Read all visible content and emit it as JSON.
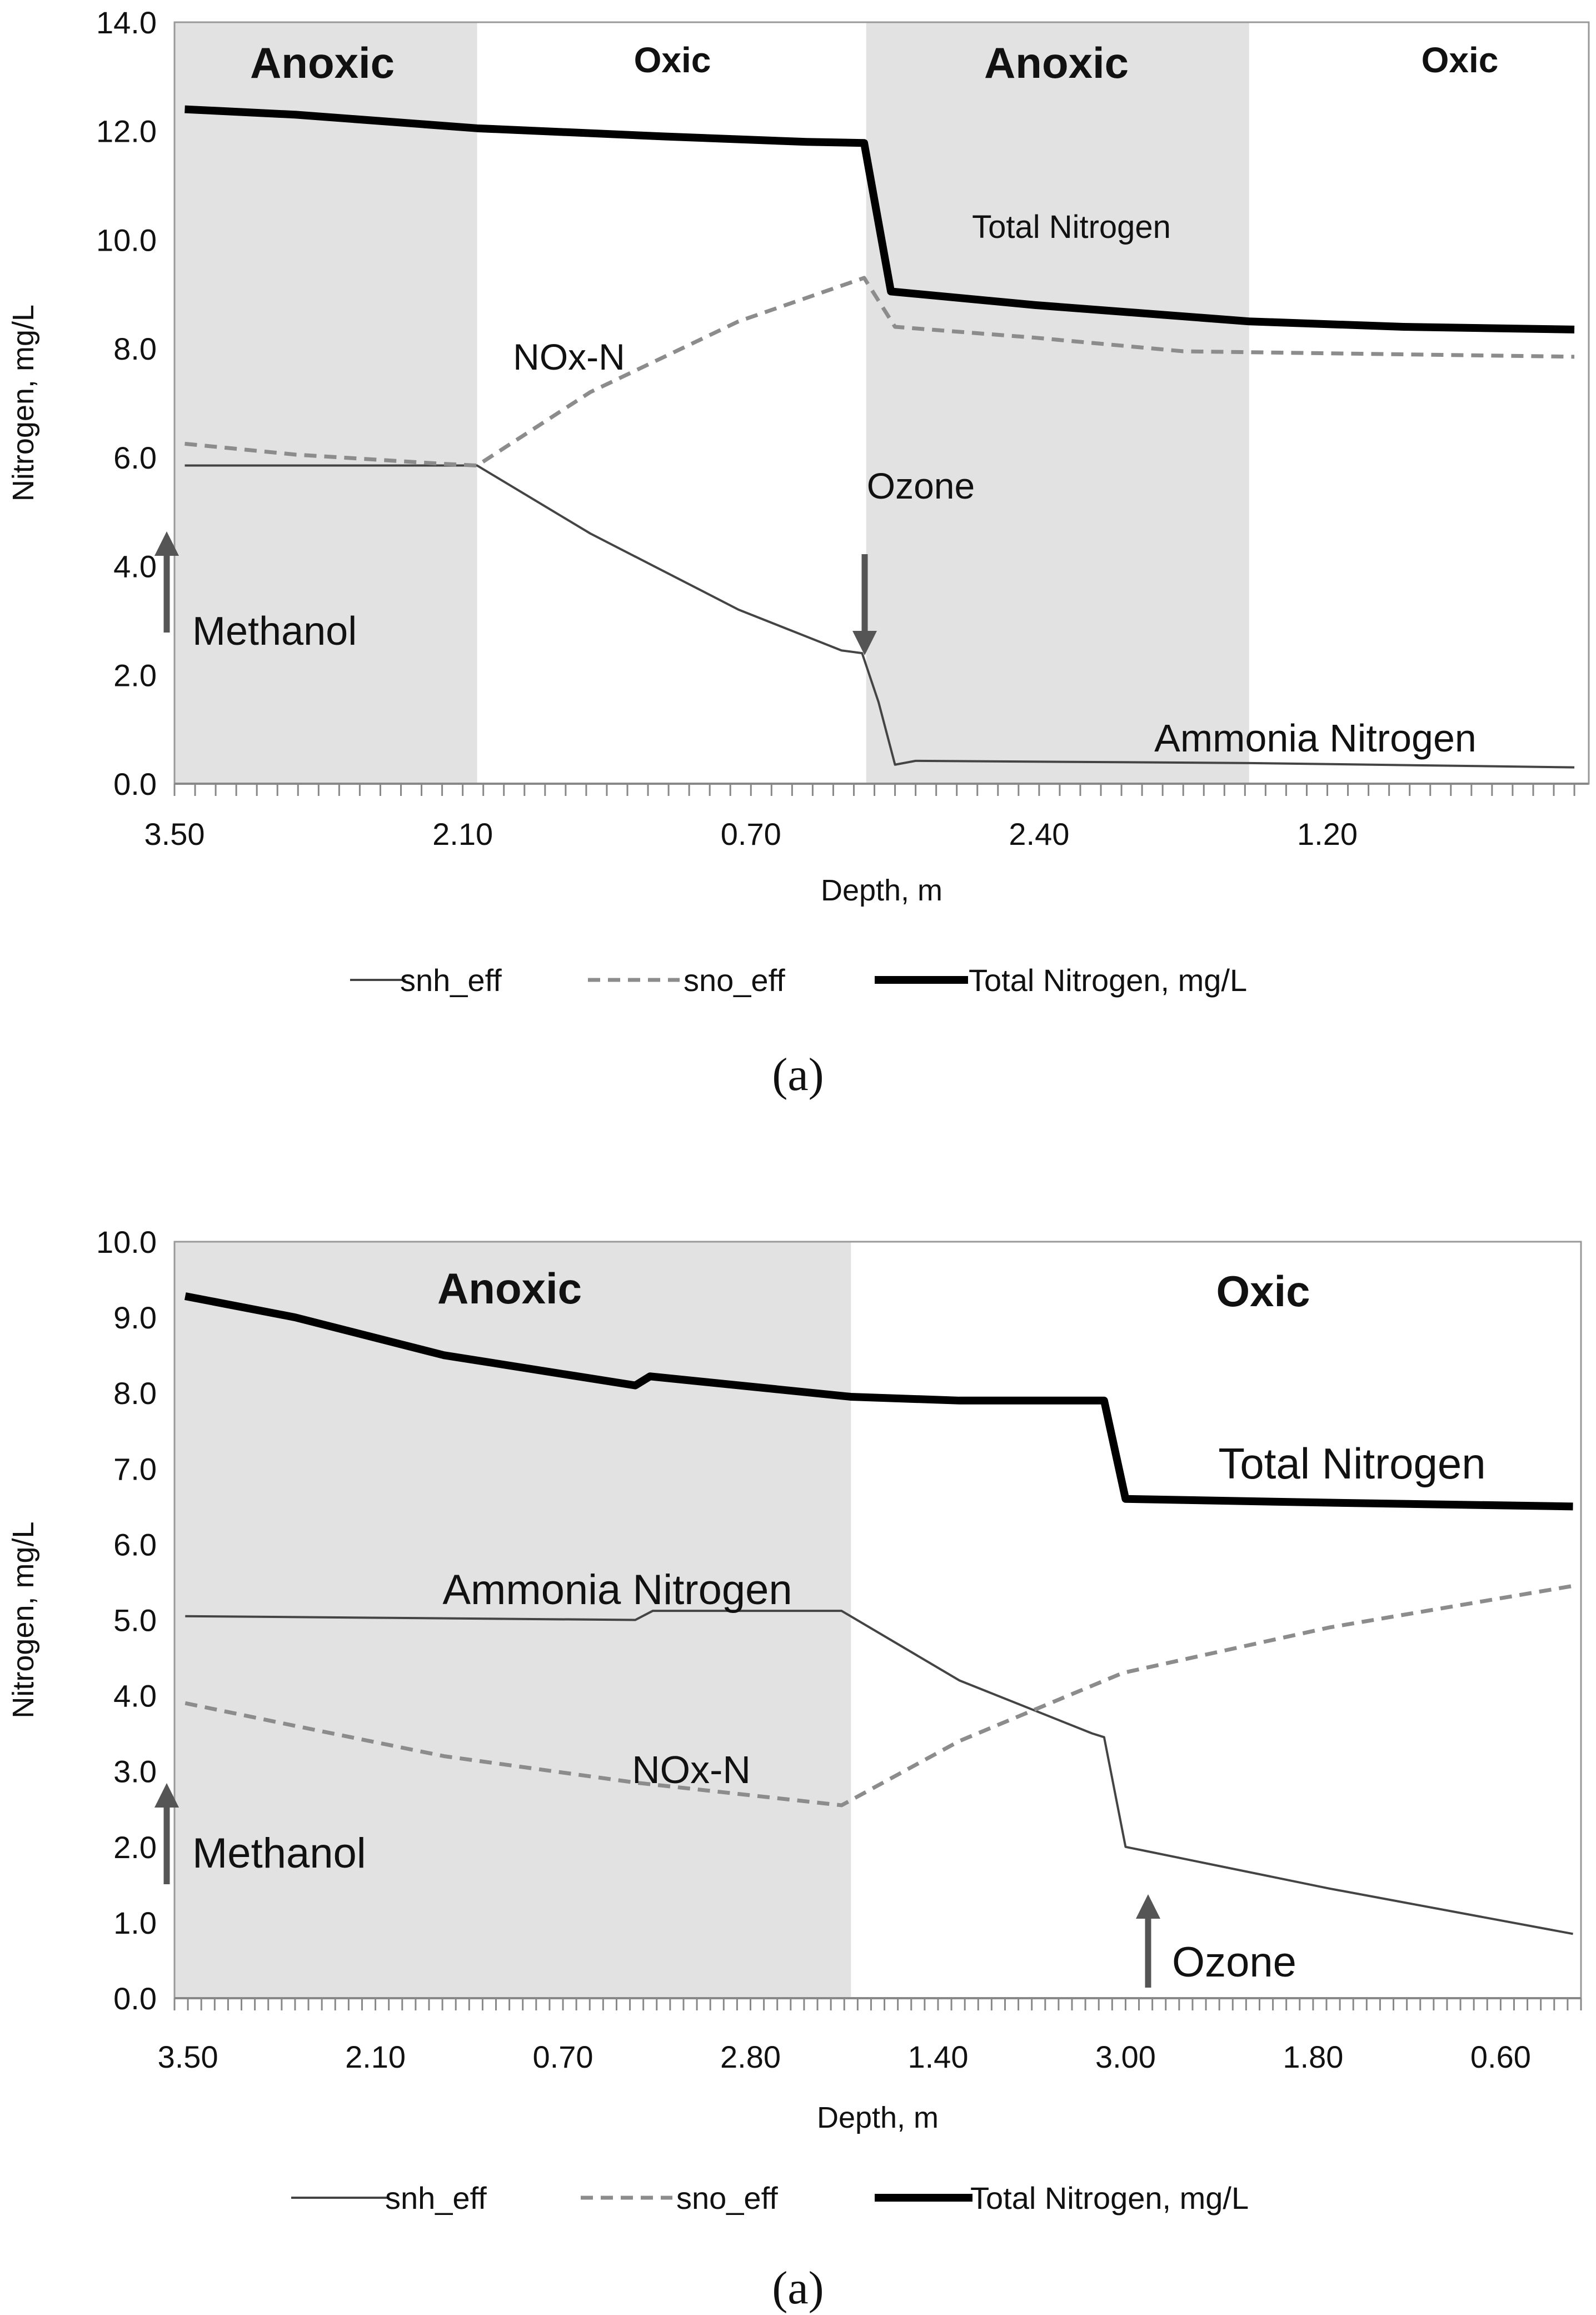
{
  "colors": {
    "region_fill": "#e2e2e2",
    "total_nitrogen": "#000000",
    "snh": "#444444",
    "sno": "#8c8c8c",
    "arrow": "#555555"
  },
  "chart_data": [
    {
      "type": "line",
      "caption": "(a)",
      "xlabel": "Depth, m",
      "ylabel": "Nitrogen, mg/L",
      "ylim": [
        0,
        14
      ],
      "yticks": [
        "0.0",
        "2.0",
        "4.0",
        "6.0",
        "8.0",
        "10.0",
        "12.0",
        "14.0"
      ],
      "ytick_values": [
        0,
        2,
        4,
        6,
        8,
        10,
        12,
        14
      ],
      "xlim": [
        0,
        68.7
      ],
      "xtick_positions": [
        0,
        14,
        28,
        42,
        56
      ],
      "xtick_labels": [
        "3.50",
        "2.10",
        "0.70",
        "2.40",
        "1.20"
      ],
      "regions": [
        {
          "label": "Anoxic",
          "from": 0,
          "to": 14.7,
          "shaded": true
        },
        {
          "label": "Oxic",
          "from": 14.7,
          "to": 33.6,
          "shaded": false
        },
        {
          "label": "Anoxic",
          "from": 33.6,
          "to": 52.2,
          "shaded": true
        },
        {
          "label": "Oxic",
          "from": 52.2,
          "to": 68.7,
          "shaded": false
        }
      ],
      "series": [
        {
          "name": "snh_eff",
          "x": [
            0.5,
            14.7,
            20.2,
            27.4,
            32.4,
            33.4,
            34.2,
            35.0,
            36.0,
            52.2,
            68.0
          ],
          "y": [
            5.85,
            5.85,
            4.6,
            3.2,
            2.45,
            2.4,
            1.5,
            0.35,
            0.42,
            0.38,
            0.3
          ]
        },
        {
          "name": "sno_eff",
          "x": [
            0.5,
            5.9,
            13.1,
            14.7,
            20.2,
            27.4,
            33.5,
            35.0,
            41.8,
            49.0,
            68.0
          ],
          "y": [
            6.25,
            6.05,
            5.88,
            5.85,
            7.2,
            8.5,
            9.3,
            8.4,
            8.2,
            7.95,
            7.85
          ]
        },
        {
          "name": "Total Nitrogen, mg/L",
          "x": [
            0.5,
            5.9,
            14.7,
            23.8,
            30.7,
            33.5,
            34.8,
            41.8,
            52.2,
            59.7,
            68.0
          ],
          "y": [
            12.4,
            12.3,
            12.05,
            11.9,
            11.8,
            11.78,
            9.05,
            8.8,
            8.5,
            8.4,
            8.35
          ]
        }
      ],
      "annotations": [
        "Total Nitrogen",
        "NOx-N",
        "Ozone",
        "Methanol",
        "Ammonia Nitrogen"
      ],
      "legend_placement": "bottom"
    },
    {
      "type": "line",
      "caption": "(a)",
      "xlabel": "Depth, m",
      "ylabel": "Nitrogen, mg/L",
      "ylim": [
        0,
        10
      ],
      "yticks": [
        "0.0",
        "1.0",
        "2.0",
        "3.0",
        "4.0",
        "5.0",
        "6.0",
        "7.0",
        "8.0",
        "9.0",
        "10.0"
      ],
      "ytick_values": [
        0,
        1,
        2,
        3,
        4,
        5,
        6,
        7,
        8,
        9,
        10
      ],
      "xlim": [
        -1,
        104
      ],
      "xtick_positions": [
        0,
        14,
        28,
        42,
        56,
        70,
        84,
        98
      ],
      "xtick_labels": [
        "3.50",
        "2.10",
        "0.70",
        "2.80",
        "1.40",
        "3.00",
        "1.80",
        "0.60"
      ],
      "regions": [
        {
          "label": "Anoxic",
          "from": -1,
          "to": 49.5,
          "shaded": true
        },
        {
          "label": "Oxic",
          "from": 49.5,
          "to": 104,
          "shaded": false
        }
      ],
      "series": [
        {
          "name": "snh_eff",
          "x": [
            -0.2,
            33.4,
            34.7,
            48.8,
            57.6,
            67.5,
            68.4,
            70.0,
            71.4,
            85.2,
            103.4
          ],
          "y": [
            5.05,
            5.0,
            5.12,
            5.12,
            4.2,
            3.5,
            3.45,
            2.0,
            1.95,
            1.45,
            0.85
          ]
        },
        {
          "name": "sno_eff",
          "x": [
            -0.2,
            8.0,
            19.1,
            33.4,
            48.8,
            57.6,
            69.8,
            85.2,
            103.4
          ],
          "y": [
            3.9,
            3.6,
            3.2,
            2.85,
            2.55,
            3.4,
            4.3,
            4.9,
            5.45
          ]
        },
        {
          "name": "Total Nitrogen, mg/L",
          "x": [
            -0.2,
            8.0,
            19.1,
            33.4,
            34.5,
            49.5,
            57.6,
            68.4,
            70.0,
            85.2,
            103.4
          ],
          "y": [
            9.28,
            9.0,
            8.5,
            8.1,
            8.22,
            7.95,
            7.9,
            7.9,
            6.6,
            6.55,
            6.5
          ]
        }
      ],
      "annotations": [
        "Total Nitrogen",
        "Ammonia Nitrogen",
        "NOx-N",
        "Methanol",
        "Ozone"
      ],
      "legend_placement": "bottom"
    }
  ]
}
